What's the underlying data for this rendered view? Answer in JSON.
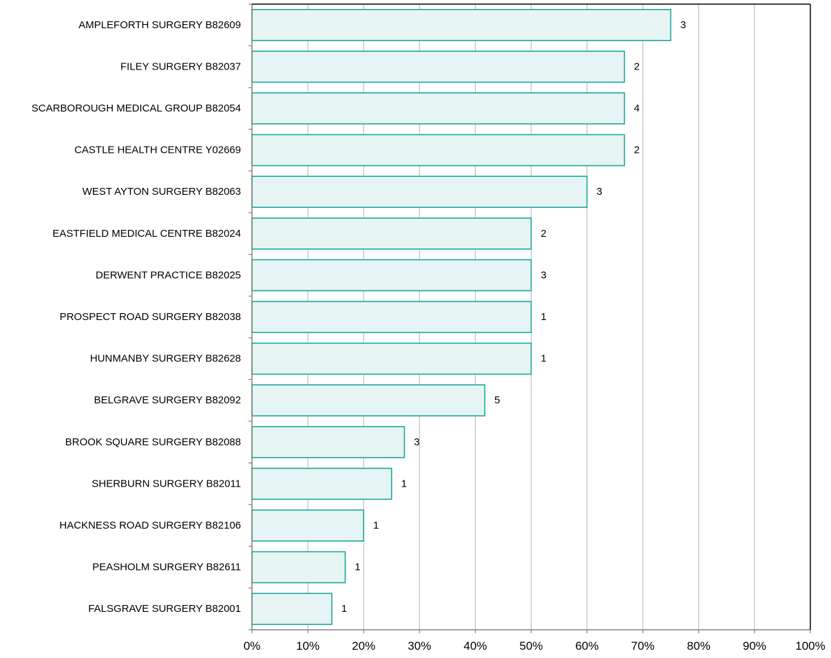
{
  "chart_data": {
    "type": "bar",
    "orientation": "horizontal",
    "categories": [
      "AMPLEFORTH SURGERY B82609",
      "FILEY SURGERY B82037",
      "SCARBOROUGH MEDICAL GROUP B82054",
      "CASTLE HEALTH CENTRE Y02669",
      "WEST AYTON SURGERY B82063",
      "EASTFIELD MEDICAL CENTRE B82024",
      "DERWENT PRACTICE B82025",
      "PROSPECT ROAD SURGERY B82038",
      "HUNMANBY SURGERY B82628",
      "BELGRAVE SURGERY B82092",
      "BROOK SQUARE SURGERY B82088",
      "SHERBURN SURGERY B82011",
      "HACKNESS ROAD SURGERY B82106",
      "PEASHOLM SURGERY B82611",
      "FALSGRAVE SURGERY B82001"
    ],
    "values": [
      75,
      66.7,
      66.7,
      66.7,
      60,
      50,
      50,
      50,
      50,
      41.7,
      27.3,
      25,
      20,
      16.7,
      14.3
    ],
    "data_labels": [
      "3",
      "2",
      "4",
      "2",
      "3",
      "2",
      "3",
      "1",
      "1",
      "5",
      "3",
      "1",
      "1",
      "1",
      "1"
    ],
    "xlim": [
      0,
      100
    ],
    "xticks": [
      0,
      10,
      20,
      30,
      40,
      50,
      60,
      70,
      80,
      90,
      100
    ],
    "xtick_labels": [
      "0%",
      "10%",
      "20%",
      "30%",
      "40%",
      "50%",
      "60%",
      "70%",
      "80%",
      "90%",
      "100%"
    ],
    "grid": "vertical",
    "bar_fill": "#e6f4f3",
    "bar_stroke": "#1aa89a",
    "grid_color": "#c0c0c0"
  }
}
